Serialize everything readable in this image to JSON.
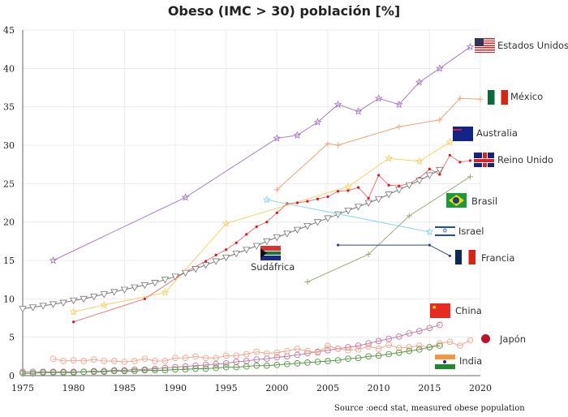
{
  "chart_data": {
    "type": "line",
    "title": "Obeso (IMC > 30) población [%]",
    "source": "Source :oecd stat, measured obese population",
    "xlim": [
      1975,
      2020
    ],
    "ylim": [
      0,
      45
    ],
    "grid": true,
    "xticks": [
      1975,
      1980,
      1985,
      1990,
      1995,
      2000,
      2005,
      2010,
      2015,
      2020
    ],
    "yticks": [
      0,
      5,
      10,
      15,
      20,
      25,
      30,
      35,
      40,
      45
    ],
    "series": [
      {
        "name": "Estados Unidos",
        "color": "#a77dc2",
        "marker": "star",
        "x": [
          1978,
          1991,
          2000,
          2002,
          2004,
          2006,
          2008,
          2010,
          2012,
          2014,
          2016,
          2019
        ],
        "y": [
          15.0,
          23.2,
          30.9,
          31.3,
          33.0,
          35.3,
          34.4,
          36.1,
          35.3,
          38.2,
          40.0,
          42.8
        ]
      },
      {
        "name": "México",
        "color": "#f2a27a",
        "marker": "plus",
        "x": [
          2000,
          2005,
          2006,
          2012,
          2016,
          2018,
          2020
        ],
        "y": [
          24.2,
          30.2,
          30.0,
          32.4,
          33.3,
          36.1,
          36.0
        ]
      },
      {
        "name": "Australia",
        "color": "#f5d26a",
        "marker": "star",
        "x": [
          1980,
          1983,
          1989,
          1995,
          2007,
          2011,
          2014,
          2017
        ],
        "y": [
          8.3,
          9.2,
          10.8,
          19.8,
          24.6,
          28.3,
          27.9,
          30.4
        ]
      },
      {
        "name": "Reino Unido",
        "color": "#ee7777",
        "markerColor": "#e8101a",
        "marker": "dot",
        "x": [
          1980,
          1987,
          1991,
          1993,
          1994,
          1995,
          1996,
          1997,
          1998,
          1999,
          2000,
          2001,
          2002,
          2003,
          2004,
          2005,
          2006,
          2007,
          2008,
          2009,
          2010,
          2011,
          2012,
          2013,
          2014,
          2015,
          2016,
          2017,
          2018,
          2019
        ],
        "y": [
          7.0,
          10.0,
          13.5,
          14.9,
          15.7,
          16.4,
          17.3,
          18.4,
          19.4,
          20.0,
          21.2,
          22.4,
          22.5,
          22.7,
          23.0,
          23.3,
          24.0,
          24.1,
          24.5,
          23.1,
          26.1,
          24.8,
          24.7,
          25.0,
          25.7,
          26.9,
          26.2,
          28.7,
          27.8,
          28.0
        ]
      },
      {
        "name": "Sudáfrica",
        "color": "#777777",
        "marker": "triangle-down",
        "x": [
          1975,
          1976,
          1977,
          1978,
          1979,
          1980,
          1981,
          1982,
          1983,
          1984,
          1985,
          1986,
          1987,
          1988,
          1989,
          1990,
          1991,
          1992,
          1993,
          1994,
          1995,
          1996,
          1997,
          1998,
          1999,
          2000,
          2001,
          2002,
          2003,
          2004,
          2005,
          2006,
          2007,
          2008,
          2009,
          2010,
          2011,
          2012,
          2013,
          2014,
          2015,
          2016
        ],
        "y": [
          8.7,
          8.9,
          9.1,
          9.3,
          9.5,
          9.8,
          10.0,
          10.3,
          10.6,
          10.9,
          11.2,
          11.5,
          11.8,
          12.1,
          12.5,
          12.9,
          13.4,
          13.9,
          14.4,
          14.9,
          15.4,
          15.9,
          16.4,
          16.9,
          17.5,
          18.0,
          18.5,
          19.0,
          19.5,
          20.0,
          20.5,
          21.0,
          21.5,
          22.0,
          22.5,
          23.0,
          23.6,
          24.2,
          24.8,
          25.4,
          26.1,
          26.8
        ]
      },
      {
        "name": "Israel",
        "color": "#8fd6ee",
        "marker": "star",
        "x": [
          1999,
          2015
        ],
        "y": [
          22.9,
          18.7
        ]
      },
      {
        "name": "Brasil",
        "color": "#9aae7a",
        "marker": "plus",
        "x": [
          2003,
          2009,
          2013,
          2019
        ],
        "y": [
          12.2,
          15.8,
          20.8,
          25.9
        ]
      },
      {
        "name": "Francia",
        "color": "#33447a",
        "marker": "dot",
        "x": [
          2006,
          2015,
          2017
        ],
        "y": [
          17.0,
          17.0,
          15.6
        ]
      },
      {
        "name": "China",
        "color": "#c77aa2",
        "marker": "circle",
        "x": [
          1975,
          1976,
          1977,
          1978,
          1979,
          1980,
          1981,
          1982,
          1983,
          1984,
          1985,
          1986,
          1987,
          1988,
          1989,
          1990,
          1991,
          1992,
          1993,
          1994,
          1995,
          1996,
          1997,
          1998,
          1999,
          2000,
          2001,
          2002,
          2003,
          2004,
          2005,
          2006,
          2007,
          2008,
          2009,
          2010,
          2011,
          2012,
          2013,
          2014,
          2015,
          2016
        ],
        "y": [
          0.5,
          0.5,
          0.5,
          0.5,
          0.5,
          0.5,
          0.5,
          0.6,
          0.6,
          0.7,
          0.7,
          0.8,
          0.8,
          0.9,
          1.0,
          1.1,
          1.2,
          1.3,
          1.4,
          1.5,
          1.6,
          1.8,
          1.9,
          2.1,
          2.2,
          2.4,
          2.5,
          2.7,
          2.9,
          3.1,
          3.3,
          3.5,
          3.7,
          3.9,
          4.2,
          4.5,
          4.8,
          5.1,
          5.5,
          5.8,
          6.2,
          6.6
        ]
      },
      {
        "name": "Japón",
        "color": "#f4a68e",
        "marker": "circle",
        "x": [
          1978,
          1979,
          1980,
          1981,
          1982,
          1983,
          1984,
          1985,
          1986,
          1987,
          1988,
          1989,
          1990,
          1991,
          1992,
          1993,
          1994,
          1995,
          1996,
          1997,
          1998,
          1999,
          2000,
          2001,
          2002,
          2003,
          2004,
          2005,
          2006,
          2007,
          2008,
          2009,
          2010,
          2011,
          2012,
          2013,
          2014,
          2015,
          2016,
          2017,
          2018,
          2019
        ],
        "y": [
          2.2,
          1.9,
          2.0,
          1.9,
          2.1,
          1.9,
          1.9,
          1.8,
          1.9,
          2.2,
          1.9,
          1.9,
          2.3,
          2.3,
          2.5,
          2.3,
          2.3,
          2.6,
          2.6,
          2.8,
          3.1,
          2.9,
          3.0,
          3.2,
          3.5,
          3.2,
          3.0,
          3.9,
          3.5,
          3.3,
          3.4,
          3.8,
          3.5,
          4.0,
          3.6,
          3.7,
          3.9,
          3.7,
          4.2,
          4.4,
          3.9,
          4.6
        ]
      },
      {
        "name": "India",
        "color": "#559944",
        "marker": "circle",
        "x": [
          1975,
          1976,
          1977,
          1978,
          1979,
          1980,
          1981,
          1982,
          1983,
          1984,
          1985,
          1986,
          1987,
          1988,
          1989,
          1990,
          1991,
          1992,
          1993,
          1994,
          1995,
          1996,
          1997,
          1998,
          1999,
          2000,
          2001,
          2002,
          2003,
          2004,
          2005,
          2006,
          2007,
          2008,
          2009,
          2010,
          2011,
          2012,
          2013,
          2014,
          2015,
          2016
        ],
        "y": [
          0.3,
          0.3,
          0.4,
          0.4,
          0.4,
          0.4,
          0.5,
          0.5,
          0.5,
          0.6,
          0.6,
          0.6,
          0.7,
          0.7,
          0.7,
          0.8,
          0.8,
          0.9,
          0.9,
          1.0,
          1.1,
          1.1,
          1.2,
          1.3,
          1.3,
          1.4,
          1.5,
          1.6,
          1.7,
          1.8,
          1.9,
          2.0,
          2.2,
          2.3,
          2.5,
          2.6,
          2.8,
          3.0,
          3.2,
          3.4,
          3.7,
          3.9
        ]
      }
    ]
  }
}
